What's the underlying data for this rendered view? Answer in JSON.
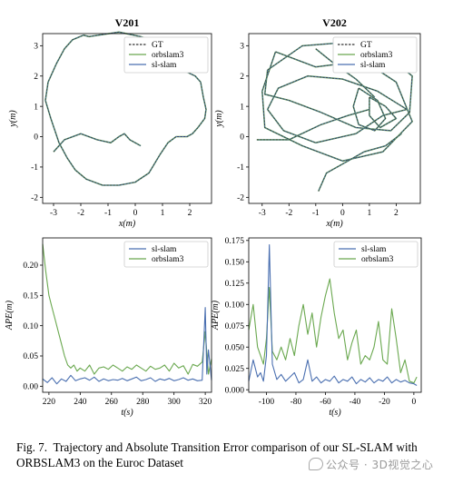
{
  "caption": {
    "label": "Fig. 7.",
    "text": "Trajectory and Absolute Transition Error comparison of our SL-SLAM with ORBSLAM3 on the Euroc Dataset"
  },
  "watermark": {
    "text": "公众号 · 3D视觉之心",
    "icon": "wechat-icon"
  },
  "colors": {
    "gt": "#333333",
    "orbslam3": "#6aa84f",
    "slslam": "#4a6fb0"
  },
  "chart_data": [
    {
      "id": "v201",
      "type": "line",
      "title": "V201",
      "xlabel": "x(m)",
      "ylabel": "y(m)",
      "xlim": [
        -3.4,
        2.8
      ],
      "ylim": [
        -2.2,
        3.4
      ],
      "xticks": [
        "-3",
        "-2",
        "-1",
        "0",
        "1",
        "2"
      ],
      "yticks": [
        "-2",
        "-1",
        "0",
        "1",
        "2",
        "3"
      ],
      "grid": false,
      "legend_position": "top-right",
      "series": [
        {
          "name": "GT",
          "style": "dashed"
        },
        {
          "name": "orbslam3",
          "style": "solid"
        },
        {
          "name": "sl-slam",
          "style": "solid"
        }
      ],
      "path": [
        [
          -1.7,
          3.3
        ],
        [
          -0.6,
          3.45
        ],
        [
          0.2,
          3.3
        ],
        [
          0.5,
          3.2
        ],
        [
          1.0,
          2.95
        ],
        [
          1.6,
          2.3
        ],
        [
          1.85,
          2.15
        ],
        [
          2.2,
          2.0
        ],
        [
          2.4,
          1.8
        ],
        [
          2.5,
          1.3
        ],
        [
          2.6,
          0.9
        ],
        [
          2.55,
          0.6
        ],
        [
          2.3,
          0.3
        ],
        [
          2.1,
          0.1
        ],
        [
          1.9,
          0.0
        ],
        [
          1.5,
          0.0
        ],
        [
          1.2,
          -0.2
        ],
        [
          0.9,
          -0.6
        ],
        [
          0.5,
          -1.2
        ],
        [
          0.0,
          -1.5
        ],
        [
          -0.6,
          -1.6
        ],
        [
          -1.2,
          -1.6
        ],
        [
          -1.8,
          -1.4
        ],
        [
          -2.2,
          -1.1
        ],
        [
          -2.5,
          -0.7
        ],
        [
          -2.8,
          -0.2
        ],
        [
          -3.1,
          0.6
        ],
        [
          -3.3,
          1.2
        ],
        [
          -3.2,
          1.8
        ],
        [
          -2.9,
          2.4
        ],
        [
          -2.6,
          2.9
        ],
        [
          -2.3,
          3.2
        ],
        [
          -1.9,
          3.35
        ],
        [
          -1.7,
          3.3
        ]
      ],
      "branch": [
        [
          -3.0,
          -0.5
        ],
        [
          -2.6,
          -0.1
        ],
        [
          -2.0,
          0.1
        ],
        [
          -1.4,
          -0.1
        ],
        [
          -0.9,
          -0.2
        ],
        [
          -0.6,
          0.0
        ],
        [
          -0.4,
          0.1
        ],
        [
          -0.2,
          -0.1
        ],
        [
          0.2,
          -0.3
        ]
      ]
    },
    {
      "id": "v202",
      "type": "line",
      "title": "V202",
      "xlabel": "x(m)",
      "ylabel": "y(m)",
      "xlim": [
        -3.5,
        2.9
      ],
      "ylim": [
        -2.2,
        3.4
      ],
      "xticks": [
        "-3",
        "-2",
        "-1",
        "0",
        "1",
        "2"
      ],
      "yticks": [
        "-2",
        "-1",
        "0",
        "1",
        "2",
        "3"
      ],
      "grid": false,
      "legend_position": "top-right",
      "series": [
        {
          "name": "GT",
          "style": "dashed"
        },
        {
          "name": "orbslam3",
          "style": "solid"
        },
        {
          "name": "sl-slam",
          "style": "solid"
        }
      ],
      "loops": [
        [
          [
            -2.8,
            2.2
          ],
          [
            -1.5,
            3.0
          ],
          [
            0.0,
            3.1
          ],
          [
            1.5,
            2.8
          ],
          [
            2.6,
            2.0
          ],
          [
            2.5,
            0.8
          ],
          [
            1.8,
            0.2
          ],
          [
            0.5,
            0.3
          ],
          [
            -0.8,
            0.8
          ],
          [
            -2.0,
            1.2
          ],
          [
            -2.9,
            1.4
          ],
          [
            -2.8,
            2.2
          ]
        ],
        [
          [
            -2.5,
            2.8
          ],
          [
            -1.0,
            2.3
          ],
          [
            0.8,
            2.5
          ],
          [
            2.0,
            1.8
          ],
          [
            2.6,
            0.5
          ],
          [
            1.5,
            -0.5
          ],
          [
            0.0,
            -0.8
          ],
          [
            -1.5,
            -0.3
          ],
          [
            -2.9,
            0.3
          ],
          [
            -3.0,
            1.5
          ],
          [
            -2.5,
            2.8
          ]
        ],
        [
          [
            -2.2,
            0.2
          ],
          [
            -1.0,
            -0.2
          ],
          [
            0.5,
            0.1
          ],
          [
            1.5,
            0.7
          ],
          [
            2.4,
            0.9
          ],
          [
            1.3,
            1.5
          ],
          [
            0.0,
            1.9
          ],
          [
            -1.3,
            2.0
          ],
          [
            -2.4,
            1.6
          ],
          [
            -2.8,
            0.9
          ],
          [
            -2.2,
            0.2
          ]
        ],
        [
          [
            0.6,
            1.6
          ],
          [
            1.3,
            1.2
          ],
          [
            1.6,
            0.6
          ],
          [
            1.2,
            0.2
          ],
          [
            0.6,
            0.4
          ],
          [
            0.4,
            1.0
          ],
          [
            0.6,
            1.6
          ]
        ],
        [
          [
            1.0,
            1.3
          ],
          [
            1.6,
            1.0
          ],
          [
            2.0,
            0.6
          ],
          [
            1.4,
            0.3
          ],
          [
            1.0,
            0.7
          ],
          [
            1.0,
            1.3
          ]
        ],
        [
          [
            -0.9,
            -1.8
          ],
          [
            -0.6,
            -1.2
          ],
          [
            0.0,
            -0.9
          ],
          [
            0.8,
            -0.5
          ],
          [
            1.6,
            -0.3
          ],
          [
            2.2,
            0.1
          ]
        ],
        [
          [
            -3.2,
            -0.1
          ],
          [
            -2.0,
            -0.1
          ],
          [
            -0.8,
            0.4
          ],
          [
            0.2,
            0.7
          ],
          [
            1.0,
            0.9
          ]
        ],
        [
          [
            -1.0,
            2.9
          ],
          [
            -0.3,
            2.4
          ],
          [
            0.5,
            1.9
          ],
          [
            1.2,
            1.3
          ]
        ]
      ]
    },
    {
      "id": "ape1",
      "type": "line",
      "title": "",
      "xlabel": "t(s)",
      "ylabel": "APE(m)",
      "xlim": [
        216,
        324
      ],
      "ylim": [
        -0.01,
        0.245
      ],
      "xticks": [
        "220",
        "240",
        "260",
        "280",
        "300",
        "320"
      ],
      "yticks": [
        "0.00",
        "0.05",
        "0.10",
        "0.15",
        "0.20"
      ],
      "grid": false,
      "legend_position": "top-right",
      "series": [
        {
          "name": "sl-slam",
          "x": [
            216,
            219,
            222,
            225,
            228,
            231,
            234,
            237,
            240,
            243,
            246,
            249,
            252,
            255,
            258,
            261,
            264,
            267,
            270,
            273,
            276,
            279,
            282,
            285,
            288,
            291,
            294,
            297,
            300,
            303,
            306,
            309,
            312,
            315,
            318,
            320,
            321,
            322,
            324
          ],
          "values": [
            0.012,
            0.006,
            0.014,
            0.004,
            0.012,
            0.008,
            0.018,
            0.009,
            0.012,
            0.014,
            0.01,
            0.015,
            0.008,
            0.012,
            0.009,
            0.011,
            0.01,
            0.013,
            0.009,
            0.012,
            0.015,
            0.009,
            0.011,
            0.014,
            0.008,
            0.012,
            0.01,
            0.013,
            0.009,
            0.011,
            0.014,
            0.01,
            0.012,
            0.009,
            0.01,
            0.13,
            0.02,
            0.06,
            0.01
          ]
        },
        {
          "name": "orbslam3",
          "x": [
            216,
            218,
            220,
            222,
            224,
            226,
            228,
            230,
            232,
            234,
            236,
            238,
            240,
            243,
            246,
            249,
            252,
            255,
            258,
            261,
            264,
            267,
            270,
            273,
            276,
            279,
            282,
            285,
            288,
            291,
            294,
            297,
            300,
            303,
            306,
            309,
            312,
            315,
            318,
            320,
            322,
            324
          ],
          "values": [
            0.235,
            0.19,
            0.15,
            0.13,
            0.11,
            0.09,
            0.07,
            0.05,
            0.035,
            0.03,
            0.035,
            0.025,
            0.03,
            0.025,
            0.035,
            0.02,
            0.03,
            0.032,
            0.028,
            0.035,
            0.03,
            0.025,
            0.032,
            0.028,
            0.035,
            0.03,
            0.025,
            0.033,
            0.028,
            0.03,
            0.035,
            0.025,
            0.038,
            0.03,
            0.034,
            0.02,
            0.036,
            0.033,
            0.04,
            0.09,
            0.02,
            0.045
          ]
        }
      ]
    },
    {
      "id": "ape2",
      "type": "line",
      "title": "",
      "xlabel": "t(s)",
      "ylabel": "APE(m)",
      "xlim": [
        -112,
        5
      ],
      "ylim": [
        -0.003,
        0.178
      ],
      "xticks": [
        "-100",
        "-80",
        "-60",
        "-40",
        "-20",
        "0"
      ],
      "yticks": [
        "0.000",
        "0.025",
        "0.050",
        "0.075",
        "0.100",
        "0.125",
        "0.150",
        "0.175"
      ],
      "grid": false,
      "legend_position": "top-right",
      "series": [
        {
          "name": "sl-slam",
          "x": [
            -112,
            -109,
            -106,
            -104,
            -102,
            -100,
            -98,
            -96,
            -93,
            -90,
            -87,
            -84,
            -81,
            -78,
            -75,
            -72,
            -69,
            -66,
            -63,
            -60,
            -57,
            -54,
            -51,
            -48,
            -45,
            -42,
            -39,
            -36,
            -33,
            -30,
            -27,
            -24,
            -21,
            -18,
            -15,
            -12,
            -9,
            -6,
            -3,
            0,
            2
          ],
          "values": [
            0.01,
            0.035,
            0.015,
            0.02,
            0.01,
            0.04,
            0.17,
            0.03,
            0.012,
            0.018,
            0.01,
            0.015,
            0.02,
            0.008,
            0.012,
            0.035,
            0.01,
            0.015,
            0.008,
            0.012,
            0.01,
            0.016,
            0.008,
            0.012,
            0.01,
            0.015,
            0.007,
            0.012,
            0.009,
            0.014,
            0.008,
            0.012,
            0.01,
            0.015,
            0.008,
            0.012,
            0.009,
            0.011,
            0.008,
            0.007,
            0.005
          ]
        },
        {
          "name": "orbslam3",
          "x": [
            -112,
            -109,
            -106,
            -104,
            -102,
            -100,
            -98,
            -96,
            -93,
            -90,
            -87,
            -84,
            -81,
            -78,
            -75,
            -72,
            -69,
            -66,
            -63,
            -60,
            -57,
            -54,
            -51,
            -48,
            -45,
            -42,
            -39,
            -36,
            -33,
            -30,
            -27,
            -24,
            -21,
            -18,
            -15,
            -12,
            -9,
            -6,
            -3,
            0,
            2
          ],
          "values": [
            0.07,
            0.1,
            0.05,
            0.04,
            0.03,
            0.06,
            0.12,
            0.045,
            0.035,
            0.05,
            0.035,
            0.06,
            0.04,
            0.075,
            0.1,
            0.065,
            0.09,
            0.05,
            0.085,
            0.11,
            0.13,
            0.09,
            0.06,
            0.07,
            0.035,
            0.055,
            0.07,
            0.03,
            0.04,
            0.035,
            0.05,
            0.08,
            0.035,
            0.03,
            0.095,
            0.06,
            0.02,
            0.035,
            0.01,
            0.008,
            0.015
          ]
        }
      ]
    }
  ]
}
